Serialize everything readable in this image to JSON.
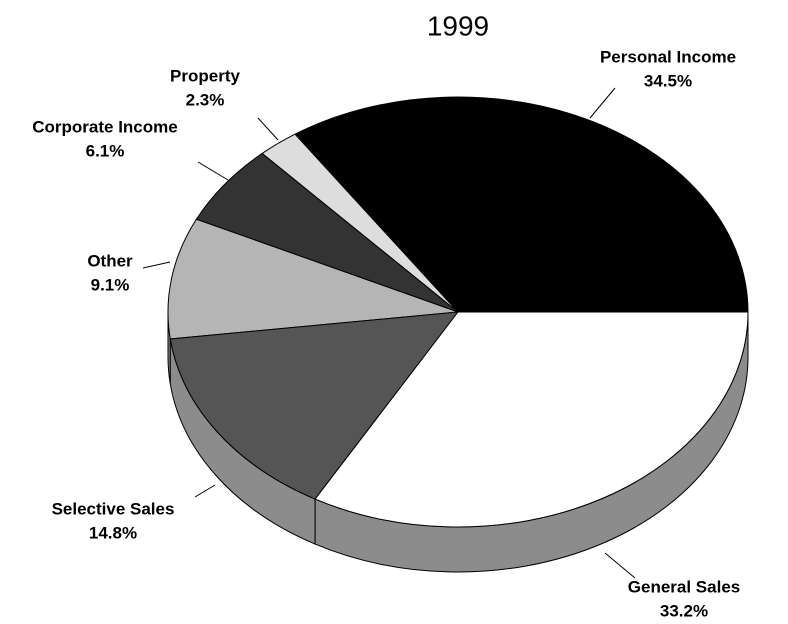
{
  "chart_data": {
    "type": "pie",
    "title": "1999",
    "categories": [
      "Personal Income",
      "Property",
      "Corporate Income",
      "Other",
      "Selective Sales",
      "General Sales"
    ],
    "values": [
      34.5,
      2.3,
      6.1,
      9.1,
      14.8,
      33.2
    ],
    "value_labels": [
      "34.5%",
      "2.3%",
      "6.1%",
      "9.1%",
      "14.8%",
      "33.2%"
    ],
    "colors": [
      "#000000",
      "#dddddd",
      "#333333",
      "#b5b5b5",
      "#555555",
      "#ffffff"
    ]
  }
}
